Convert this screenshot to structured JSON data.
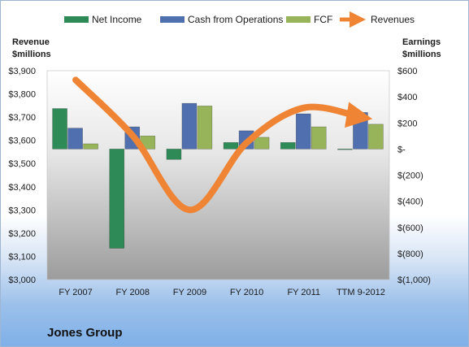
{
  "chart_data": {
    "type": "bar",
    "categories": [
      "FY 2007",
      "FY 2008",
      "FY 2009",
      "FY 2010",
      "FY 2011",
      "TTM 9-2012"
    ],
    "series": [
      {
        "name": "Net Income",
        "axis": "right",
        "type": "bar",
        "color": "#2e8b57",
        "values": [
          310,
          -760,
          -80,
          50,
          50,
          0
        ]
      },
      {
        "name": "Cash from Operations",
        "axis": "right",
        "type": "bar",
        "color": "#4f6fae",
        "values": [
          160,
          170,
          350,
          140,
          270,
          280
        ]
      },
      {
        "name": "FCF",
        "axis": "right",
        "type": "bar",
        "color": "#97b45a",
        "values": [
          40,
          100,
          330,
          90,
          170,
          190
        ]
      },
      {
        "name": "Revenues",
        "axis": "left",
        "type": "line",
        "color": "#ee8434",
        "values": [
          3860,
          3620,
          3300,
          3590,
          3740,
          3700
        ]
      }
    ],
    "left_axis": {
      "title_lines": [
        "Revenue",
        "$millions"
      ],
      "ylim": [
        3000,
        3900
      ],
      "ticks": [
        "$3,000",
        "$3,100",
        "$3,200",
        "$3,300",
        "$3,400",
        "$3,500",
        "$3,600",
        "$3,700",
        "$3,800",
        "$3,900"
      ]
    },
    "right_axis": {
      "title_lines": [
        "Earnings",
        "$millions"
      ],
      "ylim": [
        -1000,
        600
      ],
      "ticks": [
        "$(1,000)",
        "$(800)",
        "$(600)",
        "$(400)",
        "$(200)",
        "$-",
        "$200",
        "$400",
        "$600"
      ]
    },
    "legend_position": "top",
    "company": "Jones Group"
  }
}
